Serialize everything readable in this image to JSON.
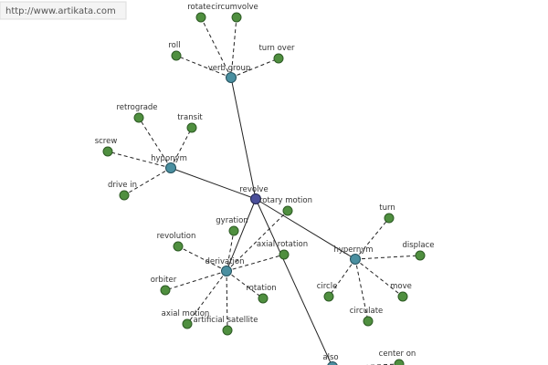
{
  "url": "http://www.artikata.com",
  "nodes": [
    {
      "label": "revolve"
    },
    {
      "label": "verb group"
    },
    {
      "label": "hyponym"
    },
    {
      "label": "derivation"
    },
    {
      "label": "hypernym"
    },
    {
      "label": "also"
    },
    {
      "label": "rotate"
    },
    {
      "label": "circumvolve"
    },
    {
      "label": "roll"
    },
    {
      "label": "turn over"
    },
    {
      "label": "retrograde"
    },
    {
      "label": "transit"
    },
    {
      "label": "screw"
    },
    {
      "label": "drive in"
    },
    {
      "label": "gyration"
    },
    {
      "label": "revolution"
    },
    {
      "label": "rotary motion"
    },
    {
      "label": "axial rotation"
    },
    {
      "label": "orbiter"
    },
    {
      "label": "rotation"
    },
    {
      "label": "axial motion"
    },
    {
      "label": "artificial satellite"
    },
    {
      "label": "turn"
    },
    {
      "label": "displace"
    },
    {
      "label": "circle"
    },
    {
      "label": "move"
    },
    {
      "label": "circulate"
    },
    {
      "label": "center on"
    }
  ]
}
